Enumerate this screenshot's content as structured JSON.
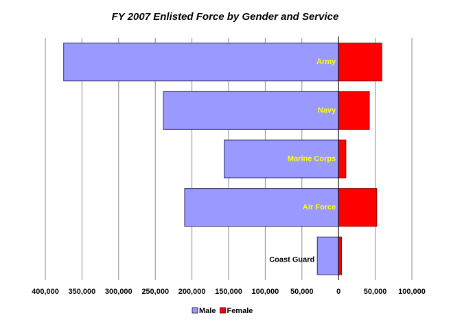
{
  "chart_data": {
    "type": "diverging-bar",
    "title": "FY 2007 Enlisted Force by Gender and Service",
    "categories": [
      "Army",
      "Navy",
      "Marine Corps",
      "Air Force",
      "Coast Guard"
    ],
    "series": [
      {
        "name": "Male",
        "color": "#9999ff",
        "values": [
          -375000,
          -239000,
          -156000,
          -210000,
          -29000
        ]
      },
      {
        "name": "Female",
        "color": "#ff0000",
        "values": [
          59000,
          42000,
          10000,
          52000,
          4000
        ]
      }
    ],
    "xlim": [
      -400000,
      100000
    ],
    "xticks": [
      {
        "value": -400000,
        "label": "400,000"
      },
      {
        "value": -350000,
        "label": "350,000"
      },
      {
        "value": -300000,
        "label": "300,000"
      },
      {
        "value": -250000,
        "label": "250,000"
      },
      {
        "value": -200000,
        "label": "200,000"
      },
      {
        "value": -150000,
        "label": "150,000"
      },
      {
        "value": -100000,
        "label": "100,000"
      },
      {
        "value": -50000,
        "label": "50,000"
      },
      0,
      {
        "value": 50000,
        "label": "50,000"
      },
      {
        "value": 100000,
        "label": "100,000"
      }
    ],
    "grid": true,
    "legend": "bottom"
  }
}
